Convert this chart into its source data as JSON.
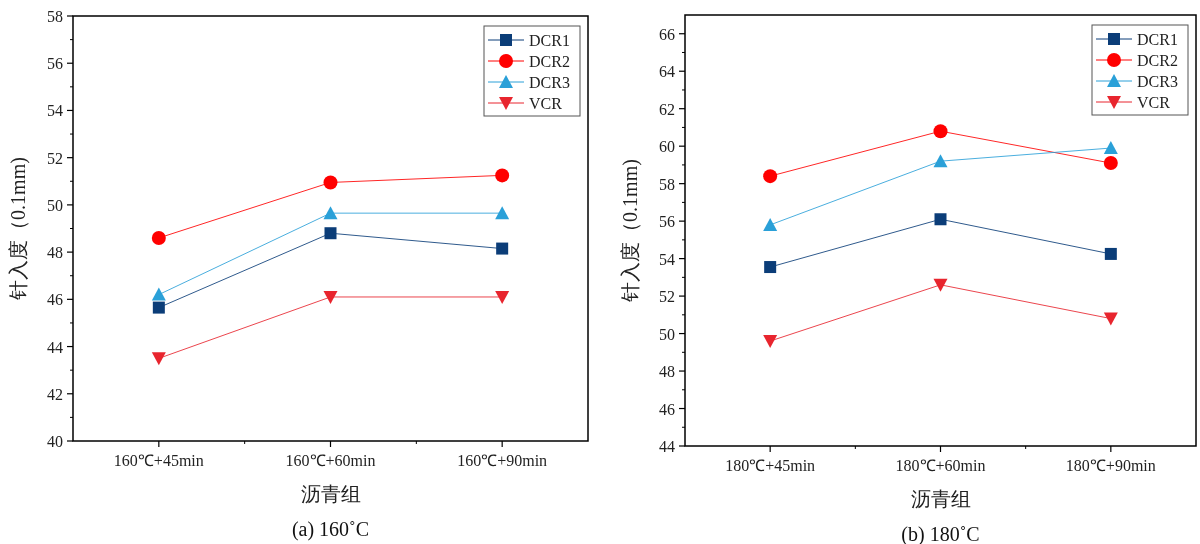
{
  "chart_data": [
    {
      "type": "line",
      "title": "(a) 160˚C",
      "xlabel": "沥青组",
      "ylabel": "针入度（0.1mm)",
      "categories": [
        "160℃+45min",
        "160℃+60min",
        "160℃+90min"
      ],
      "ylim": [
        40,
        58
      ],
      "yticks": [
        40,
        42,
        44,
        46,
        48,
        50,
        52,
        54,
        56,
        58
      ],
      "grid": false,
      "legend": "top right",
      "series": [
        {
          "name": "DCR1",
          "color": "#0b3d78",
          "marker": "square",
          "values": [
            45.65,
            48.8,
            48.15
          ]
        },
        {
          "name": "DCR2",
          "color": "#ff0000",
          "marker": "circle",
          "values": [
            48.6,
            50.95,
            51.25
          ]
        },
        {
          "name": "DCR3",
          "color": "#2aa0d8",
          "marker": "triangle",
          "values": [
            46.2,
            49.65,
            49.65
          ]
        },
        {
          "name": "VCR",
          "color": "#e8252e",
          "marker": "triangle-down",
          "values": [
            43.5,
            46.1,
            46.1
          ]
        }
      ]
    },
    {
      "type": "line",
      "title": "(b) 180˚C",
      "xlabel": "沥青组",
      "ylabel": "针入度（0.1mm)",
      "categories": [
        "180℃+45min",
        "180℃+60min",
        "180℃+90min"
      ],
      "ylim": [
        44,
        67
      ],
      "yticks": [
        44,
        46,
        48,
        50,
        52,
        54,
        56,
        58,
        60,
        62,
        64,
        66
      ],
      "grid": false,
      "legend": "top right",
      "series": [
        {
          "name": "DCR1",
          "color": "#0b3d78",
          "marker": "square",
          "values": [
            53.55,
            56.1,
            54.25
          ]
        },
        {
          "name": "DCR2",
          "color": "#ff0000",
          "marker": "circle",
          "values": [
            58.4,
            60.8,
            59.1
          ]
        },
        {
          "name": "DCR3",
          "color": "#2aa0d8",
          "marker": "triangle",
          "values": [
            55.8,
            59.2,
            59.9
          ]
        },
        {
          "name": "VCR",
          "color": "#e8252e",
          "marker": "triangle-down",
          "values": [
            49.6,
            52.6,
            50.8
          ]
        }
      ]
    }
  ]
}
